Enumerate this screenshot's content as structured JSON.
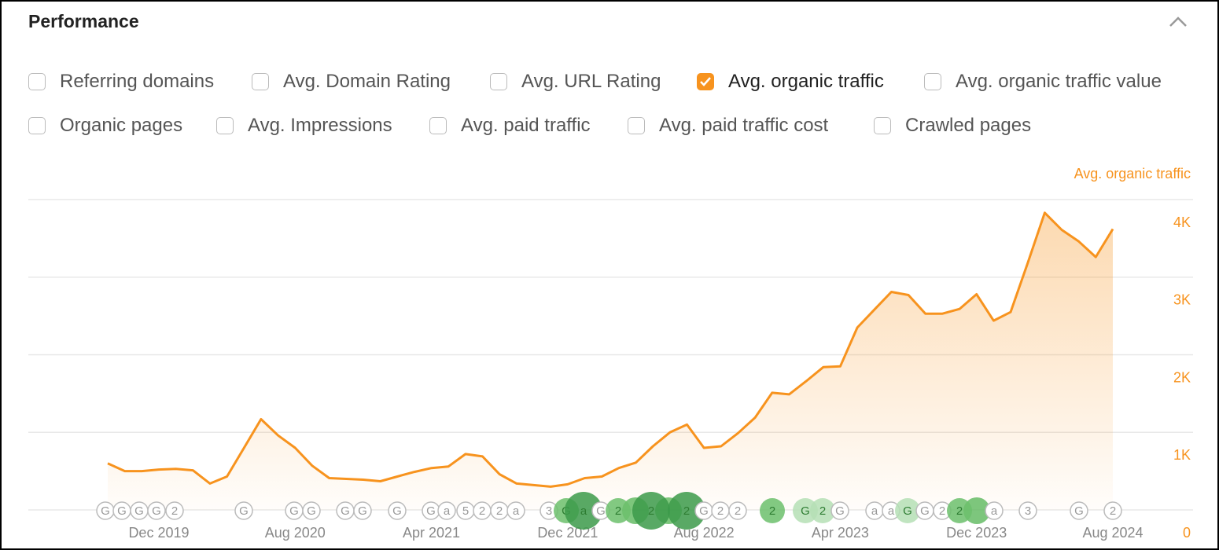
{
  "header": {
    "title": "Performance"
  },
  "checkboxes": [
    [
      {
        "label": "Referring domains",
        "checked": false
      },
      {
        "label": "Avg. Domain Rating",
        "checked": false
      },
      {
        "label": "Avg. URL Rating",
        "checked": false
      },
      {
        "label": "Avg. organic traffic",
        "checked": true
      },
      {
        "label": "Avg. organic traffic value",
        "checked": false
      }
    ],
    [
      {
        "label": "Organic pages",
        "checked": false
      },
      {
        "label": "Avg. Impressions",
        "checked": false
      },
      {
        "label": "Avg. paid traffic",
        "checked": false
      },
      {
        "label": "Avg. paid traffic cost",
        "checked": false
      },
      {
        "label": "Crawled pages",
        "checked": false
      }
    ]
  ],
  "chart_data": {
    "type": "line",
    "y2_label": "Avg. organic traffic",
    "categories": [
      null,
      null,
      null,
      "Dec 2019",
      null,
      null,
      null,
      null,
      null,
      null,
      null,
      "Aug 2020",
      null,
      null,
      null,
      null,
      null,
      null,
      null,
      "Apr 2021",
      null,
      null,
      null,
      null,
      null,
      null,
      null,
      "Dec 2021",
      null,
      null,
      null,
      null,
      null,
      null,
      null,
      "Aug 2022",
      null,
      null,
      null,
      null,
      null,
      null,
      null,
      "Apr 2023",
      null,
      null,
      null,
      null,
      null,
      null,
      null,
      "Dec 2023",
      null,
      null,
      null,
      null,
      null,
      null,
      null,
      "Aug 2024"
    ],
    "series": [
      {
        "name": "Avg. organic traffic",
        "color": "#f7931e",
        "axis": "y2",
        "values": [
          600,
          500,
          500,
          520,
          530,
          510,
          340,
          430,
          800,
          1170,
          960,
          800,
          570,
          410,
          400,
          390,
          370,
          430,
          490,
          540,
          560,
          720,
          690,
          460,
          340,
          320,
          300,
          330,
          410,
          430,
          540,
          610,
          820,
          1000,
          1100,
          800,
          820,
          990,
          1190,
          1510,
          1490,
          1660,
          1840,
          1850,
          2350,
          2580,
          2810,
          2770,
          2530,
          2530,
          2590,
          2780,
          2440,
          2550,
          3180,
          3830,
          3610,
          3460,
          3260,
          3620
        ]
      }
    ],
    "y2lim": [
      0,
      4000
    ],
    "y2ticks": [
      0,
      {
        "value": 1000,
        "label": "1K"
      },
      {
        "value": 2000,
        "label": "2K"
      },
      {
        "value": 3000,
        "label": "3K"
      },
      {
        "value": 4000,
        "label": "4K"
      }
    ],
    "grid": true,
    "annotations": [
      "G",
      "G",
      "G",
      "G",
      "2",
      "G",
      "G",
      "G",
      "G",
      "G",
      "G",
      "G",
      "a",
      "5",
      "2",
      "2",
      "a",
      "3",
      "G",
      "a",
      "G",
      "2",
      "2",
      "2",
      "G",
      "2",
      "2",
      "2",
      "G",
      "2",
      "G",
      "a",
      "a",
      "G",
      "G",
      "2",
      "2",
      "a",
      "3",
      "G",
      "2"
    ]
  }
}
